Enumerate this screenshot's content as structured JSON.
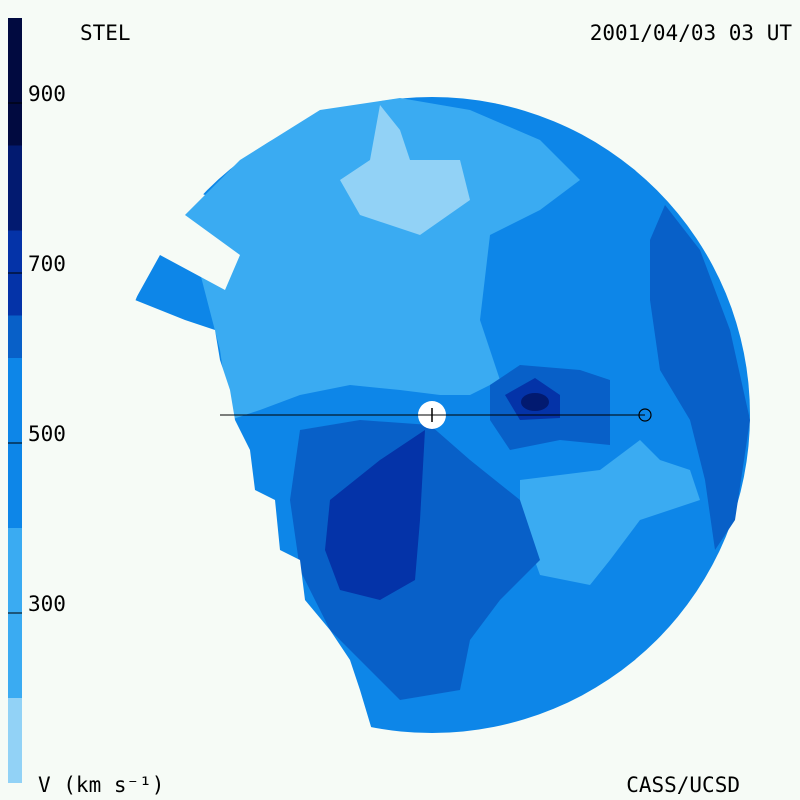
{
  "header": {
    "left": "STEL",
    "right": "2001/04/03 03 UT"
  },
  "footer": {
    "left": "V (km s⁻¹)",
    "right": "CASS/UCSD"
  },
  "chart_data": {
    "type": "colorbar",
    "clim": [
      100,
      1000
    ],
    "ticks": [
      300,
      500,
      700,
      900
    ],
    "levels": [
      100,
      200,
      400,
      600,
      650,
      750,
      850,
      1000
    ],
    "colors": [
      "#92d2f6",
      "#3aabf2",
      "#0d86e8",
      "#0860c8",
      "#0433a8",
      "#021a70",
      "#010a40"
    ]
  }
}
